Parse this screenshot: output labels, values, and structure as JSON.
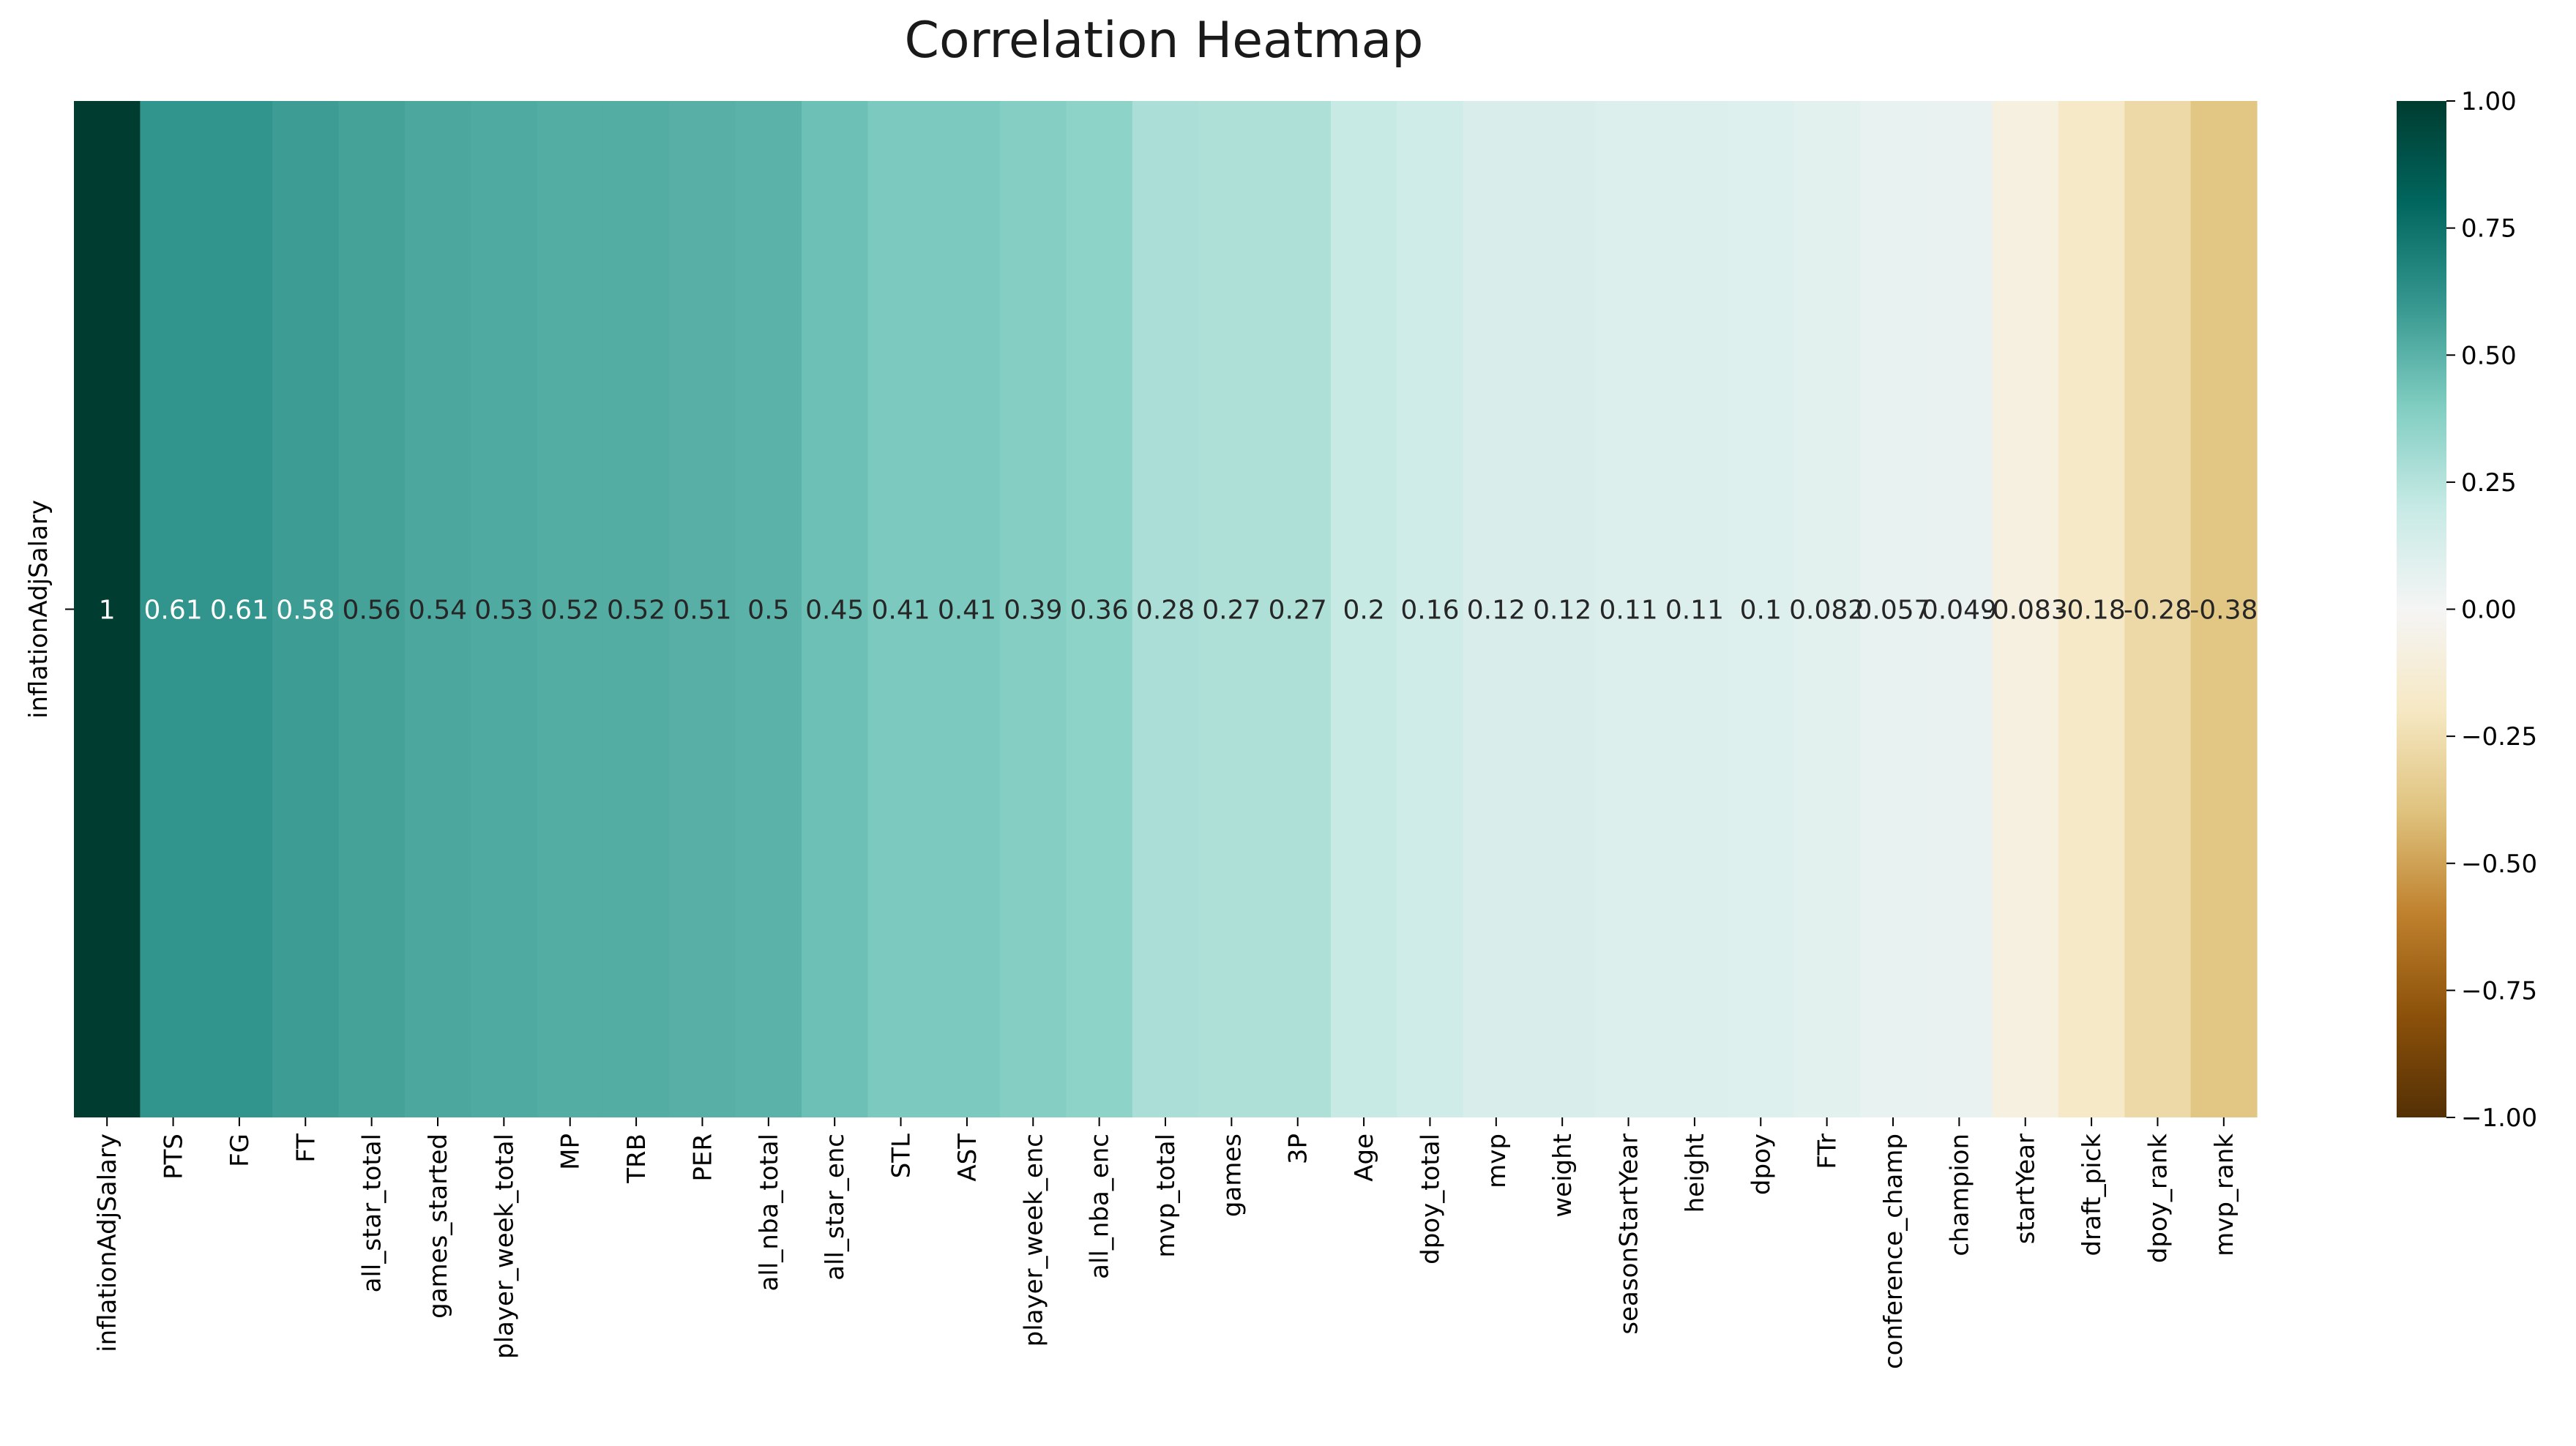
{
  "chart_data": {
    "type": "heatmap",
    "title": "Correlation Heatmap",
    "rows": [
      "inflationAdjSalary"
    ],
    "columns": [
      "inflationAdjSalary",
      "PTS",
      "FG",
      "FT",
      "all_star_total",
      "games_started",
      "player_week_total",
      "MP",
      "TRB",
      "PER",
      "all_nba_total",
      "all_star_enc",
      "STL",
      "AST",
      "player_week_enc",
      "all_nba_enc",
      "mvp_total",
      "games",
      "3P",
      "Age",
      "dpoy_total",
      "mvp",
      "weight",
      "seasonStartYear",
      "height",
      "dpoy",
      "FTr",
      "conference_champ",
      "champion",
      "startYear",
      "draft_pick",
      "dpoy_rank",
      "mvp_rank"
    ],
    "values": [
      1,
      0.61,
      0.61,
      0.58,
      0.56,
      0.54,
      0.53,
      0.52,
      0.52,
      0.51,
      0.5,
      0.45,
      0.41,
      0.41,
      0.39,
      0.36,
      0.28,
      0.27,
      0.27,
      0.2,
      0.16,
      0.12,
      0.12,
      0.11,
      0.11,
      0.1,
      0.082,
      0.057,
      0.049,
      -0.083,
      -0.18,
      -0.28,
      -0.38
    ],
    "annotations": [
      "1",
      "0.61",
      "0.61",
      "0.58",
      "0.56",
      "0.54",
      "0.53",
      "0.52",
      "0.52",
      "0.51",
      "0.5",
      "0.45",
      "0.41",
      "0.41",
      "0.39",
      "0.36",
      "0.28",
      "0.27",
      "0.27",
      "0.2",
      "0.16",
      "0.12",
      "0.12",
      "0.11",
      "0.11",
      "0.1",
      "0.082",
      "0.057",
      "0.049",
      "-0.083",
      "-0.18",
      "-0.28",
      "-0.38"
    ],
    "colormap": "BrBG",
    "colorbar": {
      "vmin": -1,
      "vmax": 1,
      "ticks": [
        1,
        0.75,
        0.5,
        0.25,
        0,
        -0.25,
        -0.5,
        -0.75,
        -1
      ],
      "tick_labels": [
        "1.00",
        "0.75",
        "0.50",
        "0.25",
        "0.00",
        "−0.25",
        "−0.50",
        "−0.75",
        "−1.00"
      ]
    }
  }
}
